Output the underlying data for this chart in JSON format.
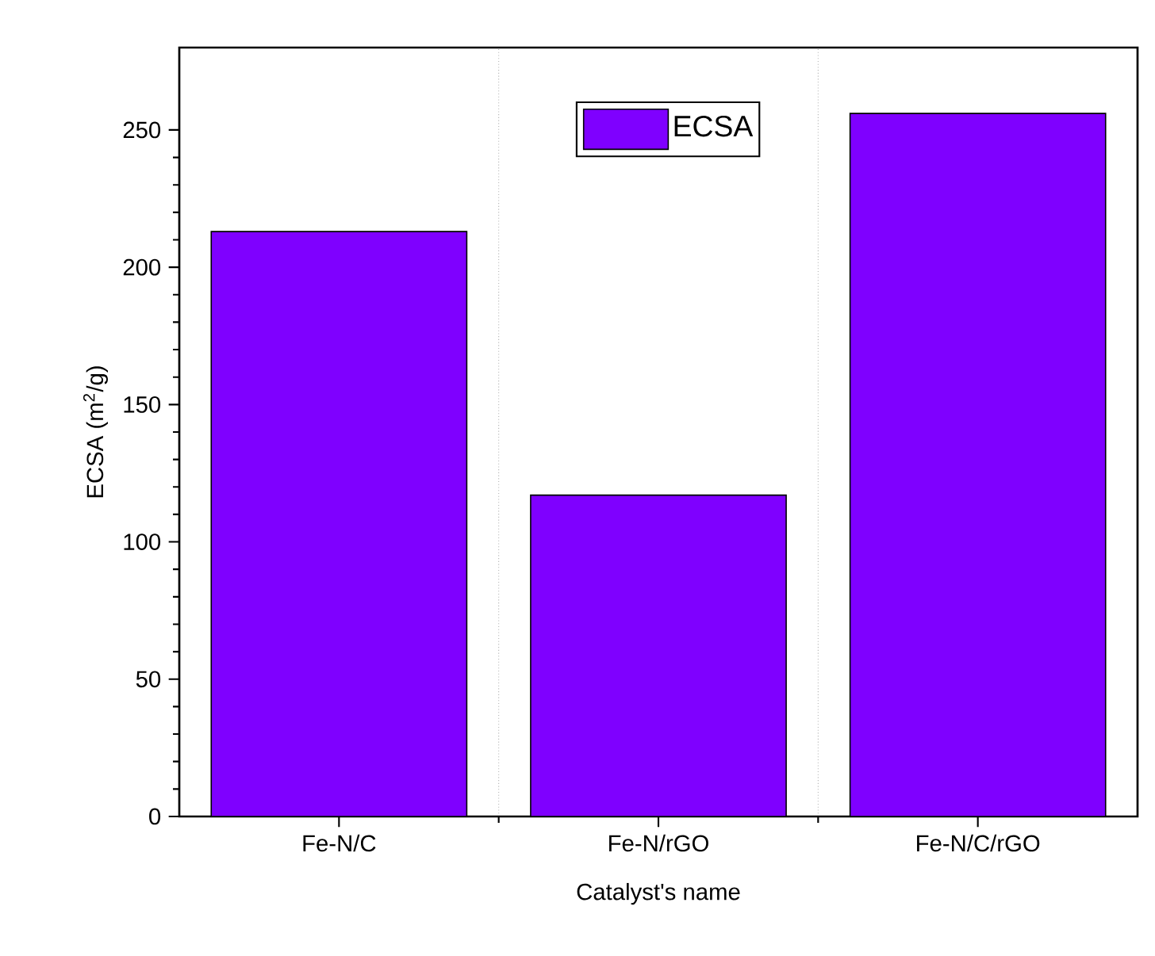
{
  "chart_data": {
    "type": "bar",
    "xlabel": "Catalyst's name",
    "ylabel": "ECSA (m$^{2}$/g)",
    "categories": [
      "Fe-N/C",
      "Fe-N/rGO",
      "Fe-N/C/rGO"
    ],
    "series": [
      {
        "name": "ECSA",
        "color": "#7f00ff",
        "values": [
          213,
          117,
          256
        ]
      }
    ],
    "ylim": [
      0,
      280
    ],
    "yticks": [
      0,
      50,
      100,
      150,
      200,
      250
    ],
    "grid": "x",
    "legend": "top"
  }
}
